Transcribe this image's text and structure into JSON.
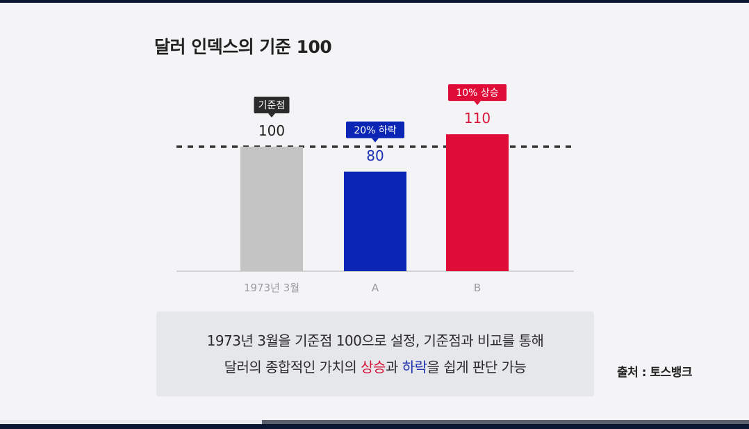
{
  "title": "달러 인덱스의 기준 100",
  "chart_data": {
    "type": "bar",
    "title": "달러 인덱스의 기준 100",
    "categories": [
      "1973년 3월",
      "A",
      "B"
    ],
    "values": [
      100,
      80,
      110
    ],
    "value_labels": [
      "100",
      "80",
      "110"
    ],
    "callouts": [
      "기준점",
      "20% 하락",
      "10% 상승"
    ],
    "bar_colors": [
      "#c4c4c4",
      "#0b26b5",
      "#df0c38"
    ],
    "label_colors": [
      "#222222",
      "#1b2fb0",
      "#d6143a"
    ],
    "callout_colors": [
      "#2b2b2b",
      "#0b26b5",
      "#df0c38"
    ],
    "reference_line": 100,
    "ylim": [
      0,
      110
    ],
    "grid": false
  },
  "caption": {
    "line1": "1973년 3월을 기준점 100으로 설정, 기준점과 비교를 통해",
    "line2_part1": "달러의 종합적인 가치의 ",
    "line2_up": "상승",
    "line2_part2": "과 ",
    "line2_down": "하락",
    "line2_part3": "을 쉽게 판단 가능"
  },
  "source": "출처 : 토스뱅크",
  "video_progress": 0.35
}
